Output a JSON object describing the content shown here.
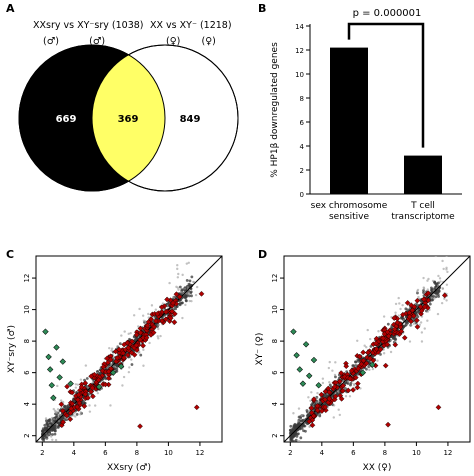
{
  "panels": {
    "a": {
      "letter": "A",
      "set_left_title": "XXsry vs XY⁻sry (1038)",
      "set_left_symbol": "(♂)          (♂)",
      "set_right_title": "XX vs XY⁻ (1218)",
      "set_right_symbol": "(♀)       (♀)",
      "left_only": "669",
      "overlap": "369",
      "right_only": "849"
    },
    "b": {
      "letter": "B",
      "p_value": "p = 0.000001"
    },
    "c": {
      "letter": "C"
    },
    "d": {
      "letter": "D"
    }
  },
  "colors": {
    "venn_left": "#000000",
    "venn_overlap": "#ffff66",
    "bar": "#000000",
    "red_points": "#b00000",
    "green_points": "#2e8b57",
    "grey_points": "#9a9a9a"
  },
  "chart_data": [
    {
      "panel": "A",
      "type": "venn",
      "sets": [
        {
          "name": "XXsry vs XY⁻sry (1038)",
          "size": 1038,
          "only": 669
        },
        {
          "name": "XX vs XY⁻ (1218)",
          "size": 1218,
          "only": 849
        }
      ],
      "overlap": 369
    },
    {
      "panel": "B",
      "type": "bar",
      "categories": [
        "sex chromosome sensitive",
        "T cell transcriptome"
      ],
      "values": [
        12.2,
        3.2
      ],
      "ylabel": "% HP1β downregulated genes",
      "ylim": [
        0,
        14
      ],
      "yticks": [
        0,
        2,
        4,
        6,
        8,
        10,
        12,
        14
      ],
      "annotation": "p = 0.000001"
    },
    {
      "panel": "C",
      "type": "scatter",
      "xlabel": "XXsry (♂)",
      "ylabel": "XY⁻sry (♂)",
      "xlim": [
        1.6,
        13.4
      ],
      "ylim": [
        1.6,
        13.4
      ],
      "xticks": [
        2,
        4,
        6,
        8,
        10,
        12
      ],
      "yticks": [
        2,
        4,
        6,
        8,
        10,
        12
      ],
      "diagonal": true,
      "green_points": [
        [
          2.2,
          8.6
        ],
        [
          2.4,
          7.0
        ],
        [
          2.5,
          6.2
        ],
        [
          2.6,
          5.2
        ],
        [
          2.7,
          4.4
        ],
        [
          2.9,
          7.6
        ],
        [
          3.1,
          5.7
        ],
        [
          3.3,
          6.7
        ],
        [
          3.8,
          5.3
        ],
        [
          6.5,
          6.0
        ],
        [
          5.6,
          5.1
        ],
        [
          7.0,
          6.4
        ]
      ],
      "outlier_points": [
        [
          8.2,
          2.6
        ],
        [
          11.8,
          3.8
        ],
        [
          12.1,
          11.0
        ]
      ]
    },
    {
      "panel": "D",
      "type": "scatter",
      "xlabel": "XX (♀)",
      "ylabel": "XY⁻ (♀)",
      "xlim": [
        1.6,
        13.4
      ],
      "ylim": [
        1.6,
        13.4
      ],
      "xticks": [
        2,
        4,
        6,
        8,
        10,
        12
      ],
      "yticks": [
        2,
        4,
        6,
        8,
        10,
        12
      ],
      "diagonal": true,
      "green_points": [
        [
          2.2,
          8.6
        ],
        [
          2.4,
          7.1
        ],
        [
          2.6,
          6.2
        ],
        [
          2.8,
          5.3
        ],
        [
          3.0,
          7.8
        ],
        [
          3.2,
          5.8
        ],
        [
          3.5,
          6.8
        ],
        [
          3.8,
          5.2
        ],
        [
          6.6,
          6.0
        ],
        [
          7.2,
          6.5
        ]
      ],
      "outlier_points": [
        [
          8.2,
          2.7
        ],
        [
          11.4,
          3.8
        ],
        [
          11.8,
          10.9
        ]
      ]
    }
  ]
}
